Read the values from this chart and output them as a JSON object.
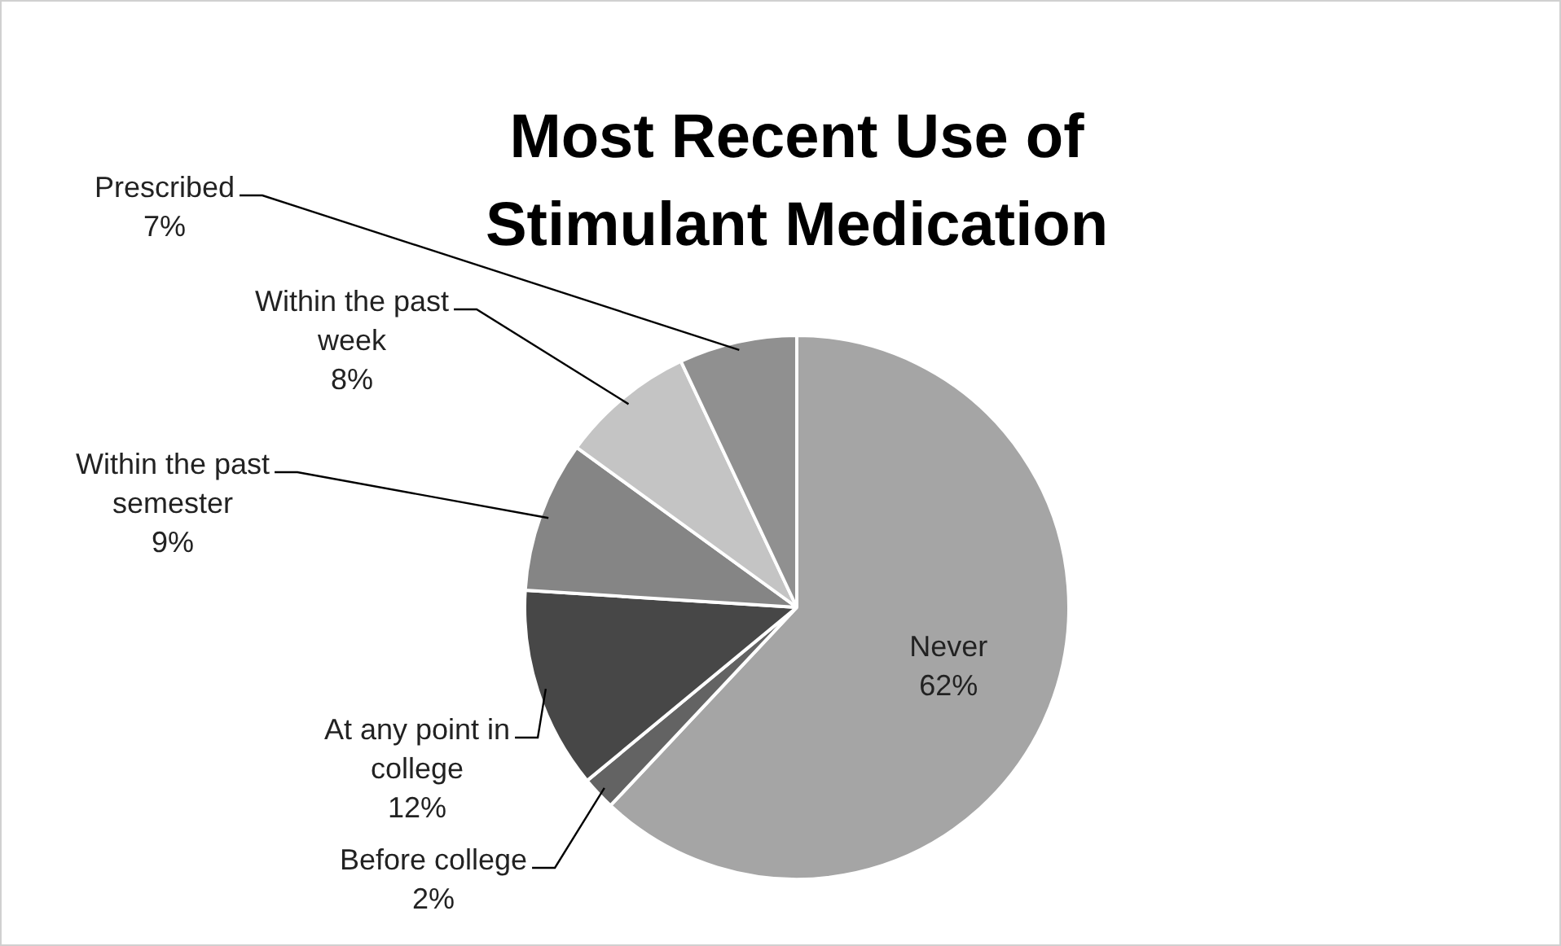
{
  "chart_data": {
    "type": "pie",
    "title": "Most Recent Use of Stimulant Medication",
    "categories": [
      "Never",
      "Before college",
      "At any point in college",
      "Within the past semester",
      "Within the past week",
      "Prescribed"
    ],
    "values": [
      62,
      2,
      12,
      9,
      8,
      7
    ],
    "value_labels": [
      "62%",
      "2%",
      "12%",
      "9%",
      "8%",
      "7%"
    ],
    "colors": [
      "#a5a5a5",
      "#636363",
      "#474747",
      "#858585",
      "#c4c4c4",
      "#909090"
    ]
  }
}
